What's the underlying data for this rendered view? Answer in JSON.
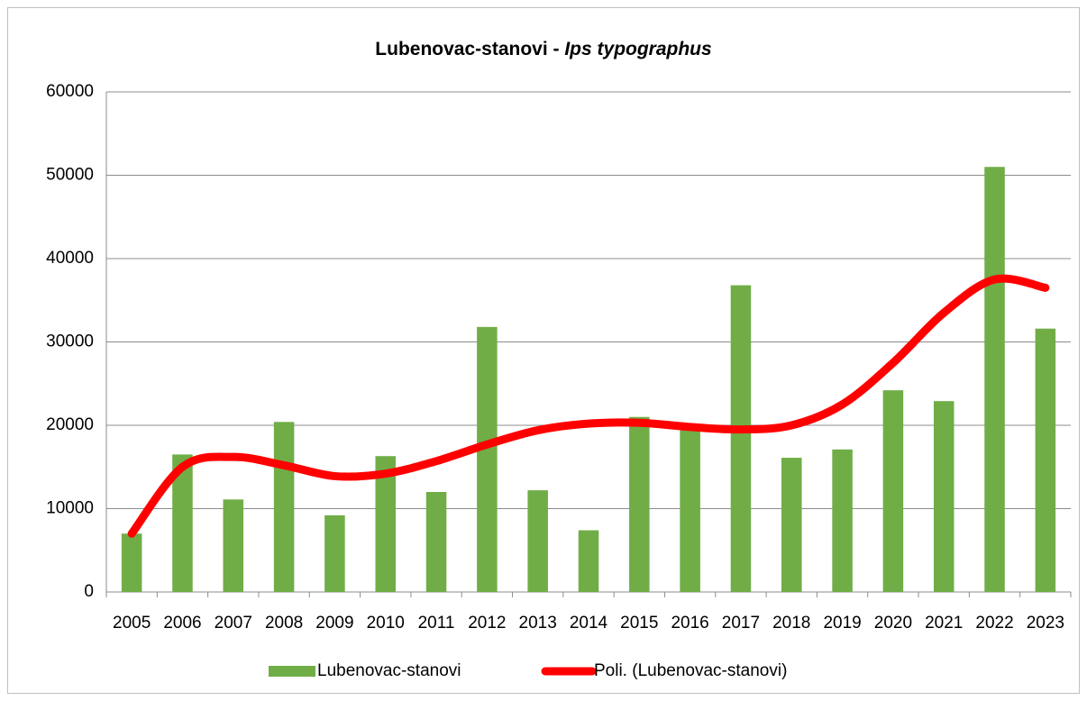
{
  "chart_data": {
    "type": "bar",
    "title": "Lubenovac-stanovi -",
    "title_italic": "Ips typographus",
    "categories": [
      "2005",
      "2006",
      "2007",
      "2008",
      "2009",
      "2010",
      "2011",
      "2012",
      "2013",
      "2014",
      "2015",
      "2016",
      "2017",
      "2018",
      "2019",
      "2020",
      "2021",
      "2022",
      "2023"
    ],
    "series": [
      {
        "name": "Lubenovac-stanovi",
        "type": "bar",
        "color": "#70ad47",
        "values": [
          7000,
          16500,
          11100,
          20400,
          9200,
          16300,
          12000,
          31800,
          12200,
          7400,
          21000,
          19500,
          36800,
          16100,
          17100,
          24200,
          22900,
          51000,
          31600
        ]
      },
      {
        "name": "Poli. (Lubenovac-stanovi)",
        "type": "line",
        "color": "#ff0000",
        "values": [
          7000,
          15000,
          16200,
          15200,
          13900,
          14200,
          15700,
          17700,
          19400,
          20200,
          20300,
          19800,
          19500,
          20000,
          22500,
          27500,
          33500,
          37500,
          36500
        ]
      }
    ],
    "ylim": [
      0,
      60000
    ],
    "yticks": [
      0,
      10000,
      20000,
      30000,
      40000,
      50000,
      60000
    ],
    "grid": true,
    "legend": "bottom"
  }
}
